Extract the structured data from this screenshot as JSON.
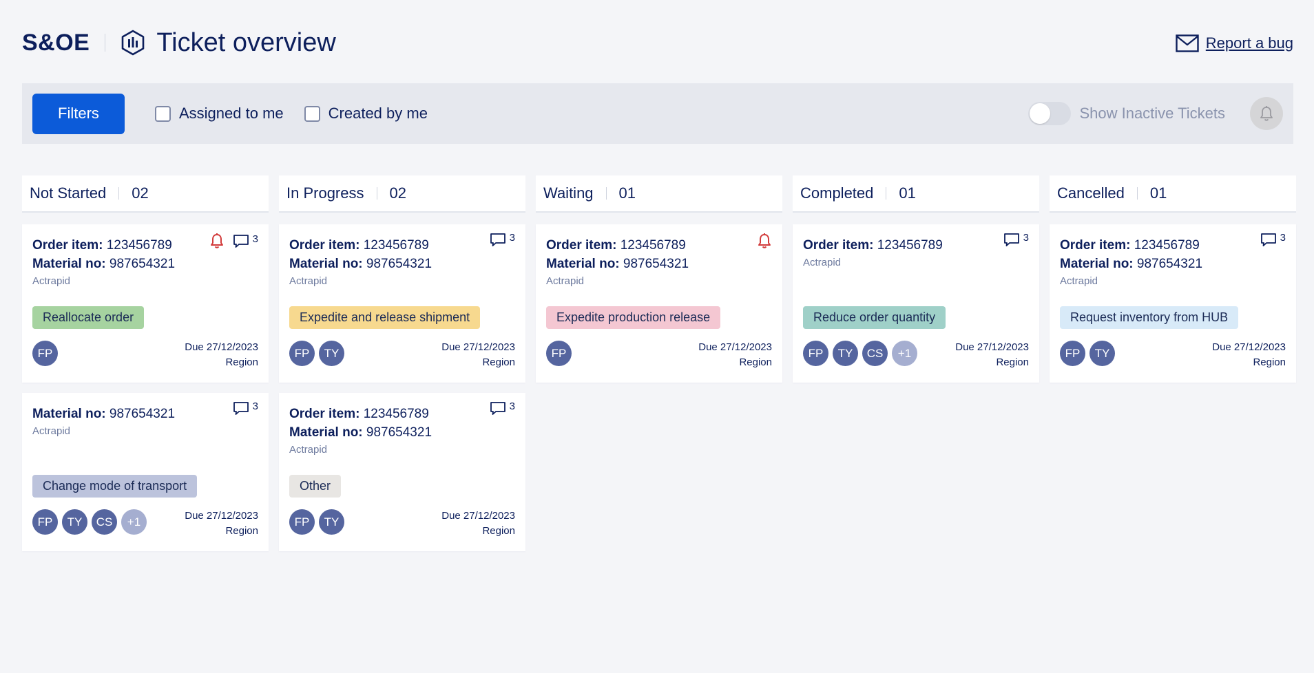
{
  "header": {
    "brand": "S&OE",
    "title": "Ticket overview",
    "report_label": "Report a bug"
  },
  "filterbar": {
    "filters_label": "Filters",
    "assigned_label": "Assigned to me",
    "created_label": "Created by me",
    "inactive_label": "Show Inactive Tickets"
  },
  "labels": {
    "order_item": "Order item:",
    "material_no": "Material no:"
  },
  "colors": {
    "brand_text": "#0d1f5c",
    "primary_button": "#0c5bd9",
    "avatar": "#55659f",
    "alert": "#d23b3b"
  },
  "columns": [
    {
      "title": "Not Started",
      "count": "02",
      "cards": [
        {
          "order_item": "123456789",
          "material_no": "987654321",
          "product": "Actrapid",
          "tag": "Reallocate order",
          "tag_color": "#a6d3a0",
          "alert": true,
          "comments": "3",
          "avatars": [
            "FP"
          ],
          "due": "Due 27/12/2023",
          "region": "Region"
        },
        {
          "material_no": "987654321",
          "product": "Actrapid",
          "tag": "Change mode of transport",
          "tag_color": "#bcc3dc",
          "alert": false,
          "comments": "3",
          "avatars": [
            "FP",
            "TY",
            "CS",
            "+1"
          ],
          "due": "Due 27/12/2023",
          "region": "Region"
        }
      ]
    },
    {
      "title": "In Progress",
      "count": "02",
      "cards": [
        {
          "order_item": "123456789",
          "material_no": "987654321",
          "product": "Actrapid",
          "tag": "Expedite and release shipment",
          "tag_color": "#f7d98f",
          "alert": false,
          "comments": "3",
          "avatars": [
            "FP",
            "TY"
          ],
          "due": "Due 27/12/2023",
          "region": "Region"
        },
        {
          "order_item": "123456789",
          "material_no": "987654321",
          "product": "Actrapid",
          "tag": "Other",
          "tag_color": "#e8e6e3",
          "alert": false,
          "comments": "3",
          "avatars": [
            "FP",
            "TY"
          ],
          "due": "Due 27/12/2023",
          "region": "Region"
        }
      ]
    },
    {
      "title": "Waiting",
      "count": "01",
      "cards": [
        {
          "order_item": "123456789",
          "material_no": "987654321",
          "product": "Actrapid",
          "tag": "Expedite production release",
          "tag_color": "#f4c7d2",
          "alert": true,
          "comments": "",
          "avatars": [
            "FP"
          ],
          "due": "Due 27/12/2023",
          "region": "Region"
        }
      ]
    },
    {
      "title": "Completed",
      "count": "01",
      "cards": [
        {
          "order_item": "123456789",
          "product": "Actrapid",
          "tag": "Reduce order quantity",
          "tag_color": "#9fd0c8",
          "alert": false,
          "comments": "3",
          "avatars": [
            "FP",
            "TY",
            "CS",
            "+1"
          ],
          "due": "Due 27/12/2023",
          "region": "Region"
        }
      ]
    },
    {
      "title": "Cancelled",
      "count": "01",
      "cards": [
        {
          "order_item": "123456789",
          "material_no": "987654321",
          "product": "Actrapid",
          "tag": "Request inventory from HUB",
          "tag_color": "#d8eaf8",
          "alert": false,
          "comments": "3",
          "avatars": [
            "FP",
            "TY"
          ],
          "due": "Due 27/12/2023",
          "region": "Region"
        }
      ]
    }
  ]
}
